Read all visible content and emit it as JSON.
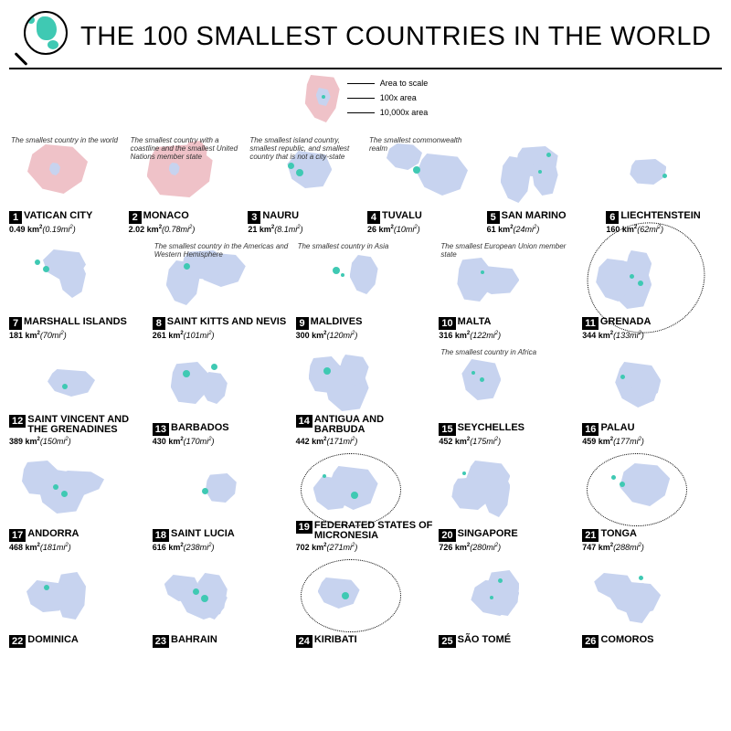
{
  "title": "THE 100 SMALLEST COUNTRIES IN THE WORLD",
  "legend": {
    "l1": "Area to scale",
    "l2": "100x area",
    "l3": "10,000x area"
  },
  "palette": {
    "teal": "#3fc9b3",
    "blue": "#c7d3ef",
    "pink": "#efc2c8",
    "text": "#000000",
    "bg": "#ffffff"
  },
  "countries": [
    {
      "rank": "1",
      "name": "VATICAN CITY",
      "km": "0.49",
      "mi": "0.19",
      "note": "The smallest country in the world"
    },
    {
      "rank": "2",
      "name": "MONACO",
      "km": "2.02",
      "mi": "0.78",
      "note": "The smallest country with a coastline and the smallest United Nations member state"
    },
    {
      "rank": "3",
      "name": "NAURU",
      "km": "21",
      "mi": "8.1",
      "note": "The smallest island country, smallest republic, and smallest country that is not a city-state"
    },
    {
      "rank": "4",
      "name": "TUVALU",
      "km": "26",
      "mi": "10",
      "note": "The smallest commonwealth realm"
    },
    {
      "rank": "5",
      "name": "SAN MARINO",
      "km": "61",
      "mi": "24",
      "note": ""
    },
    {
      "rank": "6",
      "name": "LIECHTENSTEIN",
      "km": "160",
      "mi": "62",
      "note": ""
    },
    {
      "rank": "7",
      "name": "MARSHALL ISLANDS",
      "km": "181",
      "mi": "70",
      "note": ""
    },
    {
      "rank": "8",
      "name": "SAINT KITTS AND NEVIS",
      "km": "261",
      "mi": "101",
      "note": "The smallest country in the Americas and Western Hemisphere"
    },
    {
      "rank": "9",
      "name": "MALDIVES",
      "km": "300",
      "mi": "120",
      "note": "The smallest country in Asia"
    },
    {
      "rank": "10",
      "name": "MALTA",
      "km": "316",
      "mi": "122",
      "note": "The smallest European Union member state"
    },
    {
      "rank": "11",
      "name": "GRENADA",
      "km": "344",
      "mi": "133",
      "note": ""
    },
    {
      "rank": "12",
      "name": "SAINT VINCENT AND THE GRENADINES",
      "km": "389",
      "mi": "150",
      "note": ""
    },
    {
      "rank": "13",
      "name": "BARBADOS",
      "km": "430",
      "mi": "170",
      "note": ""
    },
    {
      "rank": "14",
      "name": "ANTIGUA AND BARBUDA",
      "km": "442",
      "mi": "171",
      "note": ""
    },
    {
      "rank": "15",
      "name": "SEYCHELLES",
      "km": "452",
      "mi": "175",
      "note": "The smallest country in Africa"
    },
    {
      "rank": "16",
      "name": "PALAU",
      "km": "459",
      "mi": "177",
      "note": ""
    },
    {
      "rank": "17",
      "name": "ANDORRA",
      "km": "468",
      "mi": "181",
      "note": ""
    },
    {
      "rank": "18",
      "name": "SAINT LUCIA",
      "km": "616",
      "mi": "238",
      "note": ""
    },
    {
      "rank": "19",
      "name": "FEDERATED STATES OF MICRONESIA",
      "km": "702",
      "mi": "271",
      "note": ""
    },
    {
      "rank": "20",
      "name": "SINGAPORE",
      "km": "726",
      "mi": "280",
      "note": ""
    },
    {
      "rank": "21",
      "name": "TONGA",
      "km": "747",
      "mi": "288",
      "note": ""
    },
    {
      "rank": "22",
      "name": "DOMINICA",
      "km": "",
      "mi": "",
      "note": ""
    },
    {
      "rank": "23",
      "name": "BAHRAIN",
      "km": "",
      "mi": "",
      "note": ""
    },
    {
      "rank": "24",
      "name": "KIRIBATI",
      "km": "",
      "mi": "",
      "note": ""
    },
    {
      "rank": "25",
      "name": "SÃO TOMÉ",
      "km": "",
      "mi": "",
      "note": ""
    },
    {
      "rank": "26",
      "name": "COMOROS",
      "km": "",
      "mi": "",
      "note": ""
    }
  ]
}
